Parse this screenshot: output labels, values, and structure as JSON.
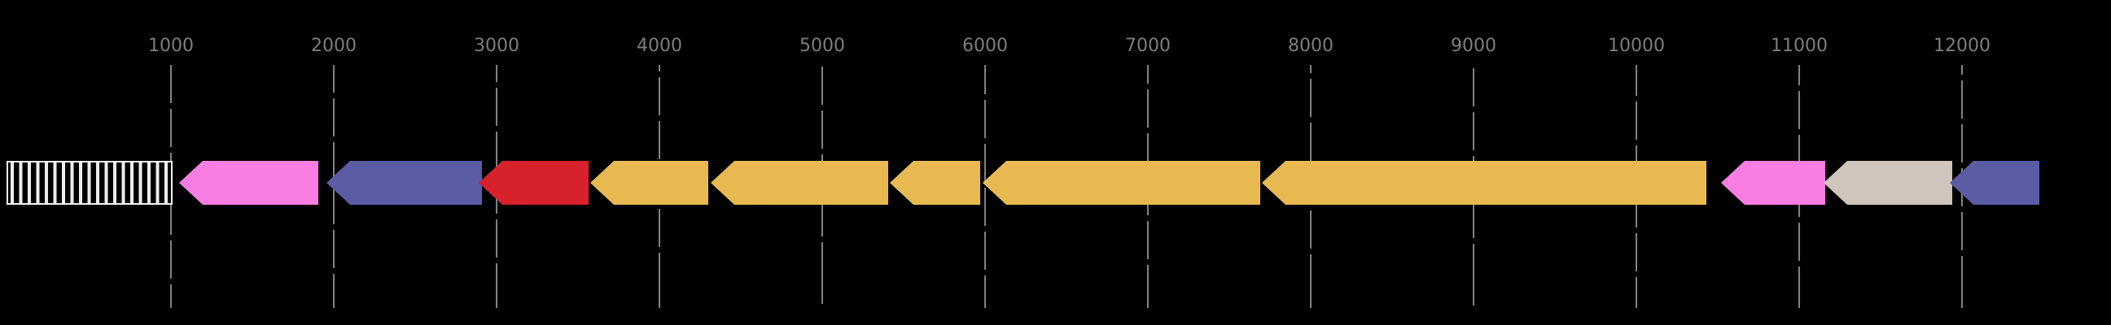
{
  "figure": {
    "background_color": "#000000",
    "title": "",
    "grid_line_color": "#828282",
    "tick_label_color": "#7d7d7d"
  },
  "chart_data": {
    "type": "genome-feature-map",
    "title": "",
    "xlabel": "",
    "ylabel": "",
    "unit": "bp",
    "grid": true,
    "legend": null,
    "axis": {
      "orientation": "horizontal",
      "range_bp": [
        0,
        12915
      ],
      "tick_values": [
        1000,
        2000,
        3000,
        4000,
        5000,
        6000,
        7000,
        8000,
        9000,
        10000,
        11000,
        12000
      ],
      "tick_labels": [
        "1000",
        "2000",
        "3000",
        "4000",
        "5000",
        "6000",
        "7000",
        "8000",
        "9000",
        "10000",
        "11000",
        "12000"
      ]
    },
    "features": [
      {
        "id": "region-hatched",
        "shape": "box",
        "pattern": "vertical-stripes",
        "start": 0,
        "end": 1000,
        "direction": "none",
        "fill": "#ededed",
        "stripe_color": "#000000",
        "border_color": "#f2f2f2"
      },
      {
        "id": "gene-pink-1",
        "shape": "arrow",
        "pattern": "solid",
        "start": 1050,
        "end": 1905,
        "direction": "left",
        "fill": "#fa7de4"
      },
      {
        "id": "gene-slate-1",
        "shape": "arrow",
        "pattern": "solid",
        "start": 1955,
        "end": 2910,
        "direction": "left",
        "fill": "#5b5ca6"
      },
      {
        "id": "gene-red",
        "shape": "arrow",
        "pattern": "solid",
        "start": 2890,
        "end": 3565,
        "direction": "left",
        "fill": "#d7212d"
      },
      {
        "id": "gene-gold-1",
        "shape": "arrow",
        "pattern": "solid",
        "start": 3575,
        "end": 4300,
        "direction": "left",
        "fill": "#e9b951"
      },
      {
        "id": "gene-gold-2",
        "shape": "arrow",
        "pattern": "solid",
        "start": 4315,
        "end": 5405,
        "direction": "left",
        "fill": "#e9b951"
      },
      {
        "id": "gene-gold-3",
        "shape": "arrow",
        "pattern": "solid",
        "start": 5415,
        "end": 5970,
        "direction": "left",
        "fill": "#e9b951"
      },
      {
        "id": "gene-gold-4",
        "shape": "arrow",
        "pattern": "solid",
        "start": 5985,
        "end": 7690,
        "direction": "left",
        "fill": "#e9b951"
      },
      {
        "id": "gene-gold-5",
        "shape": "arrow",
        "pattern": "solid",
        "start": 7700,
        "end": 10430,
        "direction": "left",
        "fill": "#e9b951"
      },
      {
        "id": "gene-pink-2",
        "shape": "arrow",
        "pattern": "solid",
        "start": 10520,
        "end": 11160,
        "direction": "left",
        "fill": "#fa7de4"
      },
      {
        "id": "gene-taupe",
        "shape": "arrow",
        "pattern": "solid",
        "start": 11150,
        "end": 11940,
        "direction": "left",
        "fill": "#cfc5bd"
      },
      {
        "id": "gene-slate-2",
        "shape": "arrow",
        "pattern": "solid",
        "start": 11925,
        "end": 12475,
        "direction": "left",
        "fill": "#5b5ca6"
      }
    ],
    "arrow_head_length_bp": 145
  }
}
